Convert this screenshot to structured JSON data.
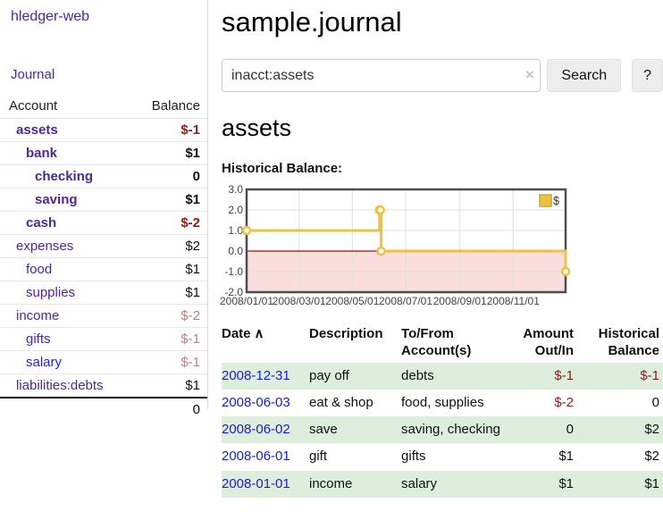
{
  "app": {
    "brand": "hledger-web",
    "nav": {
      "journal": "Journal"
    }
  },
  "sidebar": {
    "accounts_header": {
      "account": "Account",
      "balance": "Balance"
    },
    "accounts": [
      {
        "name": "assets",
        "balance": "$-1",
        "depth": 1,
        "in_query": true,
        "balance_tone": "neg-strong"
      },
      {
        "name": "bank",
        "balance": "$1",
        "depth": 2,
        "in_query": true,
        "balance_tone": ""
      },
      {
        "name": "checking",
        "balance": "0",
        "depth": 3,
        "in_query": true,
        "balance_tone": ""
      },
      {
        "name": "saving",
        "balance": "$1",
        "depth": 3,
        "in_query": true,
        "balance_tone": ""
      },
      {
        "name": "cash",
        "balance": "$-2",
        "depth": 2,
        "in_query": true,
        "balance_tone": "neg-strong"
      },
      {
        "name": "expenses",
        "balance": "$2",
        "depth": 1,
        "in_query": false,
        "balance_tone": ""
      },
      {
        "name": "food",
        "balance": "$1",
        "depth": 2,
        "in_query": false,
        "balance_tone": ""
      },
      {
        "name": "supplies",
        "balance": "$1",
        "depth": 2,
        "in_query": false,
        "balance_tone": ""
      },
      {
        "name": "income",
        "balance": "$-2",
        "depth": 1,
        "in_query": false,
        "balance_tone": "neg-muted"
      },
      {
        "name": "gifts",
        "balance": "$-1",
        "depth": 2,
        "in_query": false,
        "balance_tone": "neg-muted"
      },
      {
        "name": "salary",
        "balance": "$-1",
        "depth": 2,
        "in_query": false,
        "balance_tone": "neg-muted",
        "link_tone": "blue"
      },
      {
        "name": "liabilities:debts",
        "balance": "$1",
        "depth": 1,
        "in_query": false,
        "balance_tone": ""
      }
    ],
    "total": "0"
  },
  "main": {
    "title": "sample.journal",
    "search": {
      "value": "inacct:assets",
      "clear_icon": "×",
      "button_label": "Search",
      "help_label": "?"
    },
    "account_heading": "assets",
    "chart_label": "Historical Balance:"
  },
  "chart_data": {
    "type": "line",
    "step": true,
    "title": "Historical Balance",
    "legend": {
      "label": "$",
      "position": "top-right"
    },
    "x_domain": [
      "2008-01-01",
      "2008-12-31"
    ],
    "x_ticks": [
      "2008/01/01",
      "2008/03/01",
      "2008/05/01",
      "2008/07/01",
      "2008/09/01",
      "2008/11/01"
    ],
    "y_ticks": [
      "3.0",
      "2.0",
      "1.0",
      "0.0",
      "-1.0",
      "-2.0"
    ],
    "ylim": [
      -2,
      3
    ],
    "series": [
      {
        "name": "$",
        "color": "#EDC240",
        "points": [
          [
            "2008-01-01",
            1
          ],
          [
            "2008-06-01",
            2
          ],
          [
            "2008-06-02",
            2
          ],
          [
            "2008-06-03",
            0
          ],
          [
            "2008-12-31",
            -1
          ]
        ]
      }
    ],
    "negative_fill": "#fadddd",
    "zero_line_color": "#9e1010",
    "grid_color": "#e0e0e0",
    "border_color": "#4d4d4d"
  },
  "register": {
    "headers": {
      "date": "Date",
      "sort_indicator": "∧",
      "description": "Description",
      "accounts": "To/From Account(s)",
      "amount": "Amount Out/In",
      "balance": "Historical Balance"
    },
    "rows": [
      {
        "date": "2008-12-31",
        "description": "pay off",
        "accounts": "debts",
        "amount": "$-1",
        "amount_neg": true,
        "balance": "$-1",
        "balance_neg": true
      },
      {
        "date": "2008-06-03",
        "description": "eat & shop",
        "accounts": "food, supplies",
        "amount": "$-2",
        "amount_neg": true,
        "balance": "0",
        "balance_neg": false
      },
      {
        "date": "2008-06-02",
        "description": "save",
        "accounts": "saving, checking",
        "amount": "0",
        "amount_neg": false,
        "balance": "$2",
        "balance_neg": false
      },
      {
        "date": "2008-06-01",
        "description": "gift",
        "accounts": "gifts",
        "amount": "$1",
        "amount_neg": false,
        "balance": "$2",
        "balance_neg": false
      },
      {
        "date": "2008-01-01",
        "description": "income",
        "accounts": "salary",
        "amount": "$1",
        "amount_neg": false,
        "balance": "$1",
        "balance_neg": false
      }
    ]
  }
}
